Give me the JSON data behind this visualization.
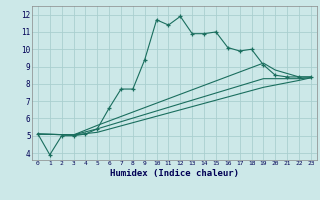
{
  "title": "",
  "xlabel": "Humidex (Indice chaleur)",
  "ylabel": "",
  "bg_color": "#cce8e8",
  "grid_color": "#aacfcf",
  "line_color": "#1a6e5e",
  "xlim": [
    -0.5,
    23.5
  ],
  "ylim": [
    3.6,
    12.5
  ],
  "xticks": [
    0,
    1,
    2,
    3,
    4,
    5,
    6,
    7,
    8,
    9,
    10,
    11,
    12,
    13,
    14,
    15,
    16,
    17,
    18,
    19,
    20,
    21,
    22,
    23
  ],
  "yticks": [
    4,
    5,
    6,
    7,
    8,
    9,
    10,
    11,
    12
  ],
  "series": [
    {
      "x": [
        0,
        1,
        2,
        3,
        4,
        5,
        6,
        7,
        8,
        9,
        10,
        11,
        12,
        13,
        14,
        15,
        16,
        17,
        18,
        19,
        20,
        21,
        22,
        23
      ],
      "y": [
        5.1,
        3.9,
        5.0,
        5.0,
        5.1,
        5.4,
        6.6,
        7.7,
        7.7,
        9.4,
        11.7,
        11.4,
        11.9,
        10.9,
        10.9,
        11.0,
        10.1,
        9.9,
        10.0,
        9.1,
        8.5,
        8.4,
        8.4,
        8.4
      ],
      "marker": "+"
    },
    {
      "x": [
        0,
        3,
        5,
        19,
        20,
        22,
        23
      ],
      "y": [
        5.1,
        5.05,
        5.6,
        9.2,
        8.8,
        8.4,
        8.4
      ],
      "marker": null
    },
    {
      "x": [
        0,
        3,
        5,
        19,
        22,
        23
      ],
      "y": [
        5.1,
        5.05,
        5.4,
        8.3,
        8.3,
        8.35
      ],
      "marker": null
    },
    {
      "x": [
        0,
        3,
        5,
        19,
        22,
        23
      ],
      "y": [
        5.1,
        5.05,
        5.2,
        7.8,
        8.2,
        8.35
      ],
      "marker": null
    }
  ]
}
